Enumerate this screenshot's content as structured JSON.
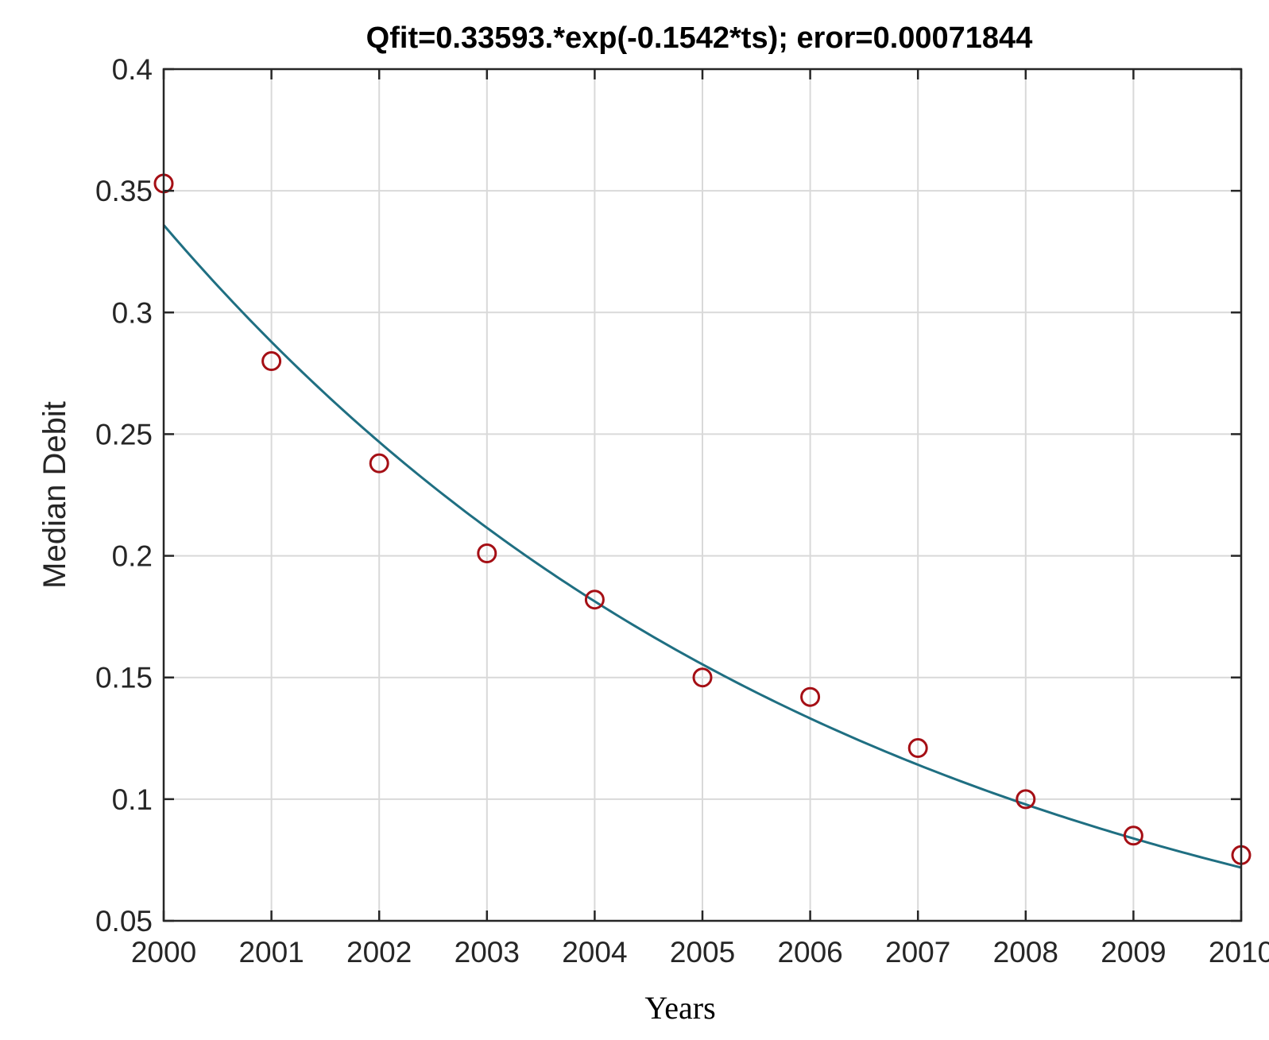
{
  "chart_data": {
    "type": "scatter",
    "title": "Qfit=0.33593.*exp(-0.1542*ts);  eror=0.00071844",
    "xlabel": "Years",
    "ylabel": "Median Debit",
    "xlim": [
      2000,
      2010
    ],
    "ylim": [
      0.05,
      0.4
    ],
    "xticks": [
      2000,
      2001,
      2002,
      2003,
      2004,
      2005,
      2006,
      2007,
      2008,
      2009,
      2010
    ],
    "xtick_labels": [
      "2000",
      "2001",
      "2002",
      "2003",
      "2004",
      "2005",
      "2006",
      "2007",
      "2008",
      "2009",
      "2010"
    ],
    "yticks": [
      0.05,
      0.1,
      0.15,
      0.2,
      0.25,
      0.3,
      0.35,
      0.4
    ],
    "ytick_labels": [
      "0.05",
      "0.1",
      "0.15",
      "0.2",
      "0.25",
      "0.3",
      "0.35",
      "0.4"
    ],
    "grid": true,
    "series": [
      {
        "marker": "circle",
        "color": "#a50f15",
        "x": [
          2000,
          2001,
          2002,
          2003,
          2004,
          2005,
          2006,
          2007,
          2008,
          2009,
          2010
        ],
        "y": [
          0.353,
          0.28,
          0.238,
          0.201,
          0.182,
          0.15,
          0.142,
          0.121,
          0.1,
          0.085,
          0.077
        ]
      },
      {
        "line": "fit",
        "color": "#1f6f82",
        "fit_amplitude": 0.33593,
        "fit_rate": -0.1542,
        "x_start": 2000,
        "x_end": 2010
      }
    ]
  }
}
